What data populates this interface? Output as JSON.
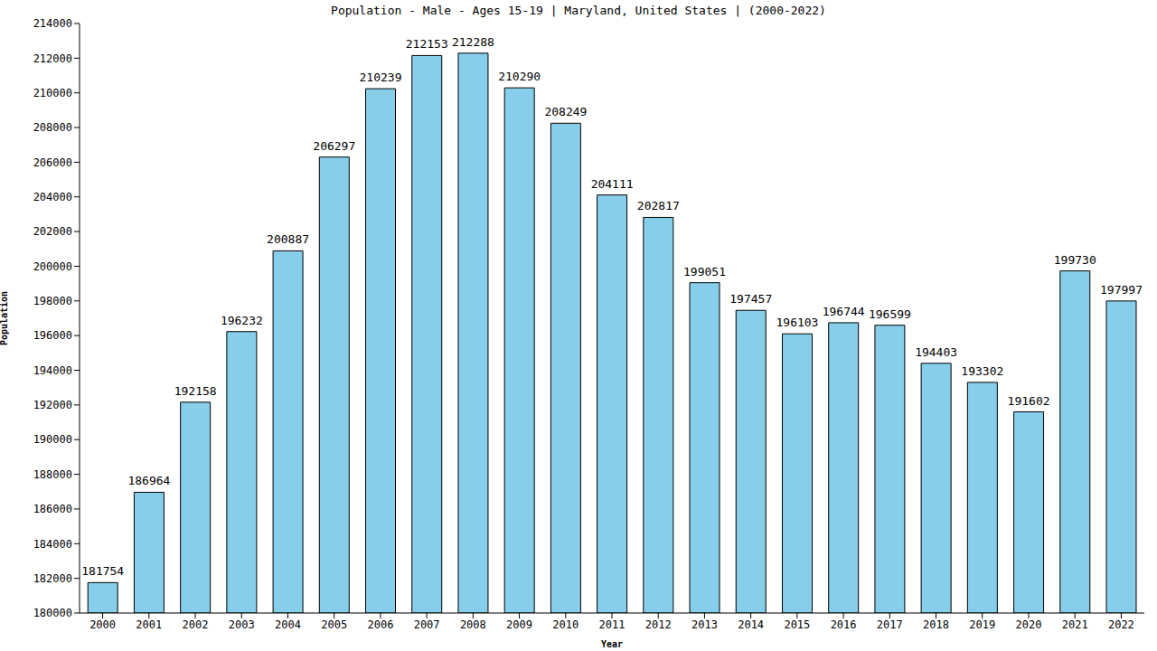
{
  "chart_data": {
    "type": "bar",
    "title": "Population - Male - Ages 15-19 | Maryland, United States | (2000-2022)",
    "x_label": "Year",
    "y_label": "Population",
    "categories": [
      "2000",
      "2001",
      "2002",
      "2003",
      "2004",
      "2005",
      "2006",
      "2007",
      "2008",
      "2009",
      "2010",
      "2011",
      "2012",
      "2013",
      "2014",
      "2015",
      "2016",
      "2017",
      "2018",
      "2019",
      "2020",
      "2021",
      "2022"
    ],
    "values": [
      181754,
      186964,
      192158,
      196232,
      200887,
      206297,
      210239,
      212153,
      212288,
      210290,
      208249,
      204111,
      202817,
      199051,
      197457,
      196103,
      196744,
      196599,
      194403,
      193302,
      191602,
      199730,
      197997
    ],
    "color": "#87ceeb",
    "ylim": [
      180000,
      214000
    ],
    "yticks": [
      180000,
      182000,
      184000,
      186000,
      188000,
      190000,
      192000,
      194000,
      196000,
      198000,
      200000,
      202000,
      204000,
      206000,
      208000,
      210000,
      212000,
      214000
    ],
    "grid": false,
    "data_labels": true
  }
}
